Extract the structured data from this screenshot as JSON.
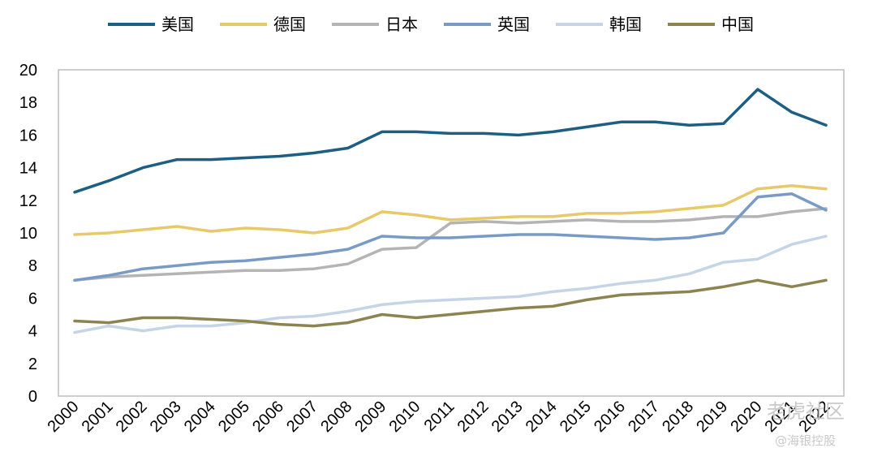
{
  "chart_data": {
    "type": "line",
    "title": "",
    "xlabel": "",
    "ylabel": "",
    "ylim": [
      0,
      20
    ],
    "yticks": [
      0,
      2,
      4,
      6,
      8,
      10,
      12,
      14,
      16,
      18,
      20
    ],
    "x": [
      "2000",
      "2001",
      "2002",
      "2003",
      "2004",
      "2005",
      "2006",
      "2007",
      "2008",
      "2009",
      "2010",
      "2011",
      "2012",
      "2013",
      "2014",
      "2015",
      "2016",
      "2017",
      "2018",
      "2019",
      "2020",
      "2021",
      "2022"
    ],
    "grid": false,
    "legend_position": "top",
    "series": [
      {
        "name": "美国",
        "color": "#1c5f83",
        "values": [
          12.5,
          13.2,
          14.0,
          14.5,
          14.5,
          14.6,
          14.7,
          14.9,
          15.2,
          16.2,
          16.2,
          16.1,
          16.1,
          16.0,
          16.2,
          16.5,
          16.8,
          16.8,
          16.6,
          16.7,
          18.8,
          17.4,
          16.6
        ]
      },
      {
        "name": "德国",
        "color": "#e8c96a",
        "values": [
          9.9,
          10.0,
          10.2,
          10.4,
          10.1,
          10.3,
          10.2,
          10.0,
          10.3,
          11.3,
          11.1,
          10.8,
          10.9,
          11.0,
          11.0,
          11.2,
          11.2,
          11.3,
          11.5,
          11.7,
          12.7,
          12.9,
          12.7
        ]
      },
      {
        "name": "日本",
        "color": "#b4b4b4",
        "values": [
          7.1,
          7.3,
          7.4,
          7.5,
          7.6,
          7.7,
          7.7,
          7.8,
          8.1,
          9.0,
          9.1,
          10.6,
          10.7,
          10.6,
          10.7,
          10.8,
          10.7,
          10.7,
          10.8,
          11.0,
          11.0,
          11.3,
          11.5
        ]
      },
      {
        "name": "英国",
        "color": "#7a9ac6",
        "values": [
          7.1,
          7.4,
          7.8,
          8.0,
          8.2,
          8.3,
          8.5,
          8.7,
          9.0,
          9.8,
          9.7,
          9.7,
          9.8,
          9.9,
          9.9,
          9.8,
          9.7,
          9.6,
          9.7,
          10.0,
          12.2,
          12.4,
          11.4
        ]
      },
      {
        "name": "韩国",
        "color": "#c5d5e7",
        "values": [
          3.9,
          4.3,
          4.0,
          4.3,
          4.3,
          4.5,
          4.8,
          4.9,
          5.2,
          5.6,
          5.8,
          5.9,
          6.0,
          6.1,
          6.4,
          6.6,
          6.9,
          7.1,
          7.5,
          8.2,
          8.4,
          9.3,
          9.8
        ]
      },
      {
        "name": "中国",
        "color": "#8c8450",
        "values": [
          4.6,
          4.5,
          4.8,
          4.8,
          4.7,
          4.6,
          4.4,
          4.3,
          4.5,
          5.0,
          4.8,
          5.0,
          5.2,
          5.4,
          5.5,
          5.9,
          6.2,
          6.3,
          6.4,
          6.7,
          7.1,
          6.7,
          7.1
        ]
      }
    ]
  },
  "watermark": {
    "line1": "老虎社区",
    "line2": "@海银控股"
  }
}
